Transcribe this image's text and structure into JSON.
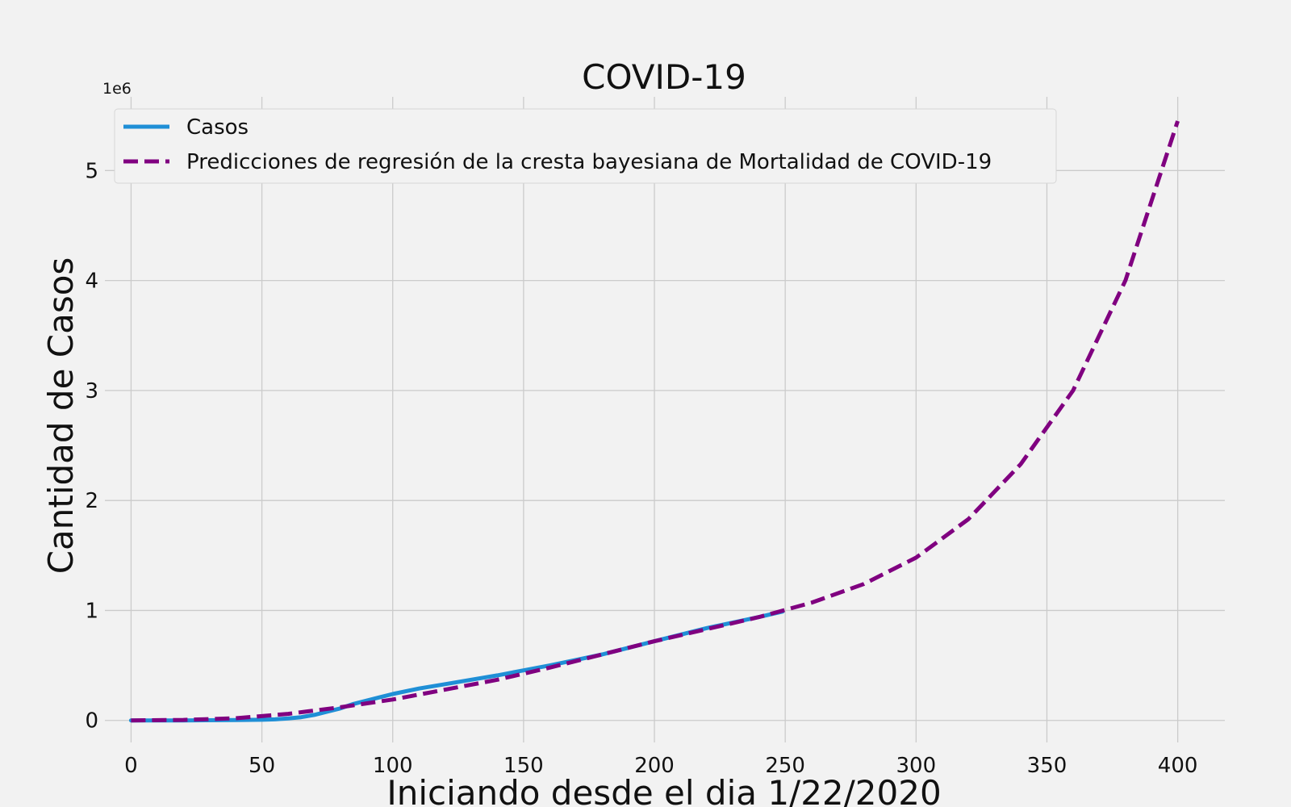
{
  "chart_data": {
    "type": "line",
    "title": "COVID-19",
    "xlabel": "Iniciando desde el dia 1/22/2020",
    "ylabel": "Cantidad de Casos",
    "y_offset_label": "1e6",
    "xlim": [
      -10,
      418
    ],
    "ylim": [
      -0.2,
      5.67
    ],
    "x_ticks": [
      0,
      50,
      100,
      150,
      200,
      250,
      300,
      350,
      400
    ],
    "x_tick_labels": [
      "0",
      "50",
      "100",
      "150",
      "200",
      "250",
      "300",
      "350",
      "400"
    ],
    "y_ticks": [
      0,
      1,
      2,
      3,
      4,
      5
    ],
    "y_tick_labels": [
      "0",
      "1",
      "2",
      "3",
      "4",
      "5"
    ],
    "grid": true,
    "legend_position": "top-left",
    "series": [
      {
        "name": "Casos",
        "color": "#1f8fd6",
        "style": "solid",
        "x": [
          0,
          20,
          40,
          50,
          55,
          60,
          65,
          70,
          75,
          80,
          85,
          90,
          95,
          100,
          110,
          120,
          130,
          140,
          150,
          160,
          170,
          180,
          190,
          200,
          210,
          220,
          230,
          240,
          249
        ],
        "y": [
          0,
          0,
          0.003,
          0.006,
          0.01,
          0.018,
          0.03,
          0.05,
          0.08,
          0.11,
          0.15,
          0.18,
          0.21,
          0.24,
          0.29,
          0.33,
          0.37,
          0.41,
          0.455,
          0.5,
          0.55,
          0.6,
          0.66,
          0.72,
          0.78,
          0.84,
          0.89,
          0.94,
          0.99
        ]
      },
      {
        "name": "Predicciones de regresión de la cresta bayesiana de Mortalidad de COVID-19",
        "color": "#800080",
        "style": "dashed",
        "x": [
          0,
          20,
          40,
          60,
          80,
          100,
          120,
          140,
          160,
          180,
          200,
          220,
          240,
          260,
          280,
          300,
          320,
          340,
          360,
          380,
          400
        ],
        "y": [
          0,
          0.005,
          0.02,
          0.06,
          0.12,
          0.19,
          0.28,
          0.37,
          0.48,
          0.6,
          0.72,
          0.83,
          0.94,
          1.07,
          1.24,
          1.48,
          1.83,
          2.33,
          3.0,
          4.0,
          5.45
        ]
      }
    ]
  }
}
